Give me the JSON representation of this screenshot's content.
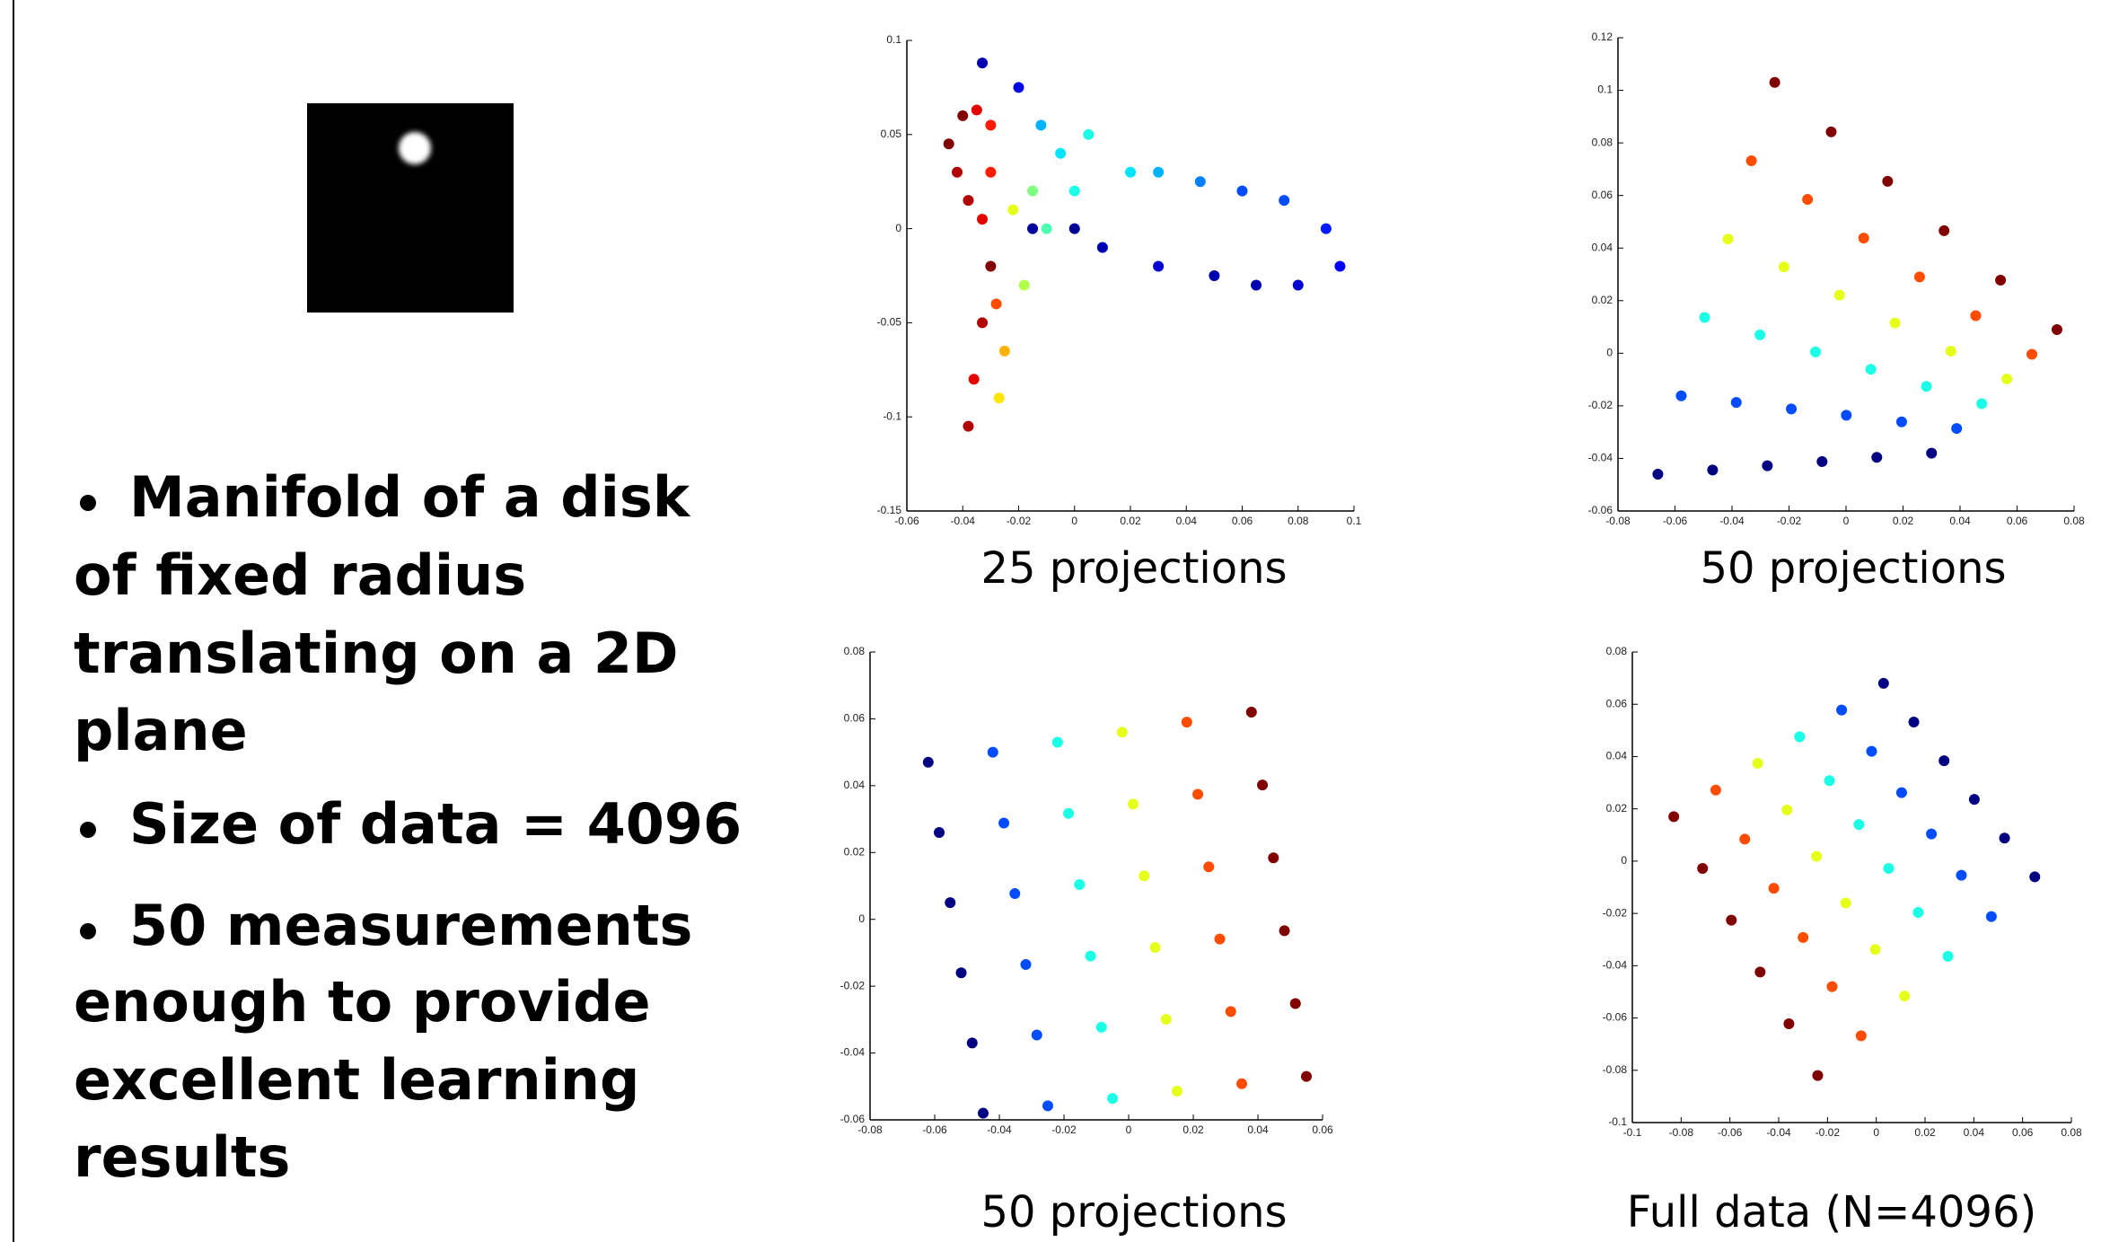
{
  "slide": {
    "bullets": [
      [
        "Manifold of a disk",
        "of fixed radius",
        "translating on a 2D",
        "plane"
      ],
      [
        "Size of data = 4096"
      ],
      [
        "50 measurements",
        "enough to provide",
        "excellent learning",
        "results"
      ]
    ]
  },
  "chart_data": [
    {
      "type": "scatter",
      "caption": "25 projections",
      "colormap": "jet",
      "xlim": [
        -0.06,
        0.1
      ],
      "ylim": [
        -0.15,
        0.1
      ],
      "xticks": [
        -0.06,
        -0.04,
        -0.02,
        0,
        0.02,
        0.04,
        0.06,
        0.08,
        0.1
      ],
      "yticks": [
        -0.15,
        -0.1,
        -0.05,
        0,
        0.05,
        0.1
      ],
      "x": [
        -0.04,
        -0.045,
        -0.042,
        -0.038,
        -0.033,
        -0.03,
        -0.03,
        -0.035,
        -0.03,
        -0.033,
        -0.036,
        -0.038,
        -0.028,
        -0.025,
        -0.027,
        -0.022,
        -0.015,
        -0.01,
        -0.018,
        -0.005,
        0.005,
        0.0,
        0.01,
        0.02,
        -0.012,
        0.03,
        0.045,
        0.06,
        0.075,
        0.09,
        0.095,
        0.08,
        0.065,
        0.05,
        0.03,
        0.01,
        0.0,
        -0.015,
        -0.033,
        -0.02
      ],
      "y": [
        0.06,
        0.045,
        0.03,
        0.015,
        0.005,
        0.03,
        0.055,
        0.063,
        -0.02,
        -0.05,
        -0.08,
        -0.105,
        -0.04,
        -0.065,
        -0.09,
        0.01,
        0.02,
        0.0,
        -0.03,
        0.04,
        0.05,
        0.02,
        -0.01,
        0.03,
        0.055,
        0.03,
        0.025,
        0.02,
        0.015,
        0.0,
        -0.02,
        -0.03,
        -0.03,
        -0.025,
        -0.02,
        -0.01,
        0.0,
        0.0,
        0.088,
        0.075
      ],
      "c": [
        1,
        1,
        0.95,
        0.95,
        0.9,
        0.85,
        0.85,
        0.9,
        1,
        0.95,
        0.9,
        0.95,
        0.8,
        0.7,
        0.65,
        0.6,
        0.5,
        0.45,
        0.55,
        0.35,
        0.4,
        0.4,
        0.35,
        0.35,
        0.3,
        0.3,
        0.25,
        0.2,
        0.2,
        0.15,
        0.12,
        0.08,
        0.05,
        0.05,
        0.08,
        0.05,
        0.02,
        0.03,
        0.05,
        0.1
      ]
    },
    {
      "type": "scatter",
      "caption": "50 projections",
      "colormap": "jet",
      "xlim": [
        -0.08,
        0.08
      ],
      "ylim": [
        -0.06,
        0.12
      ],
      "xticks": [
        -0.08,
        -0.06,
        -0.04,
        -0.02,
        0,
        0.02,
        0.04,
        0.06,
        0.08
      ],
      "yticks": [
        -0.06,
        -0.04,
        -0.02,
        0,
        0.02,
        0.04,
        0.06,
        0.08,
        0.1,
        0.12
      ],
      "x": [
        -0.025,
        -0.0332,
        -0.0414,
        -0.0496,
        -0.0578,
        -0.066,
        -0.0052,
        -0.0135,
        -0.0218,
        -0.0302,
        -0.0385,
        -0.0468,
        0.0146,
        0.0062,
        -0.0023,
        -0.0107,
        -0.0192,
        -0.0276,
        0.0344,
        0.0258,
        0.0172,
        0.0087,
        0.0001,
        -0.0084,
        0.0542,
        0.0455,
        0.0368,
        0.0282,
        0.0195,
        0.0108,
        0.074,
        0.0652,
        0.0564,
        0.0476,
        0.0388,
        0.03
      ],
      "y": [
        0.103,
        0.0732,
        0.0434,
        0.0136,
        -0.0162,
        -0.046,
        0.0842,
        0.0585,
        0.0328,
        0.007,
        -0.0187,
        -0.0444,
        0.0654,
        0.0438,
        0.0221,
        0.0005,
        -0.0212,
        -0.0428,
        0.0466,
        0.029,
        0.0115,
        -0.0061,
        -0.0236,
        -0.0412,
        0.0278,
        0.0143,
        0.0008,
        -0.0126,
        -0.0261,
        -0.0396,
        0.009,
        -0.0004,
        -0.0098,
        -0.0192,
        -0.0286,
        -0.038
      ],
      "c": [
        1,
        0.8,
        0.6,
        0.4,
        0.2,
        0,
        1,
        0.8,
        0.6,
        0.4,
        0.2,
        0,
        1,
        0.8,
        0.6,
        0.4,
        0.2,
        0,
        1,
        0.8,
        0.6,
        0.4,
        0.2,
        0,
        1,
        0.8,
        0.6,
        0.4,
        0.2,
        0,
        1,
        0.8,
        0.6,
        0.4,
        0.2,
        0
      ]
    },
    {
      "type": "scatter",
      "caption": "50 projections",
      "colormap": "jet",
      "xlim": [
        -0.08,
        0.06
      ],
      "ylim": [
        -0.06,
        0.08
      ],
      "xticks": [
        -0.08,
        -0.06,
        -0.04,
        -0.02,
        0,
        0.02,
        0.04,
        0.06
      ],
      "yticks": [
        -0.06,
        -0.04,
        -0.02,
        0,
        0.02,
        0.04,
        0.06,
        0.08
      ],
      "x": [
        -0.062,
        -0.042,
        -0.022,
        -0.002,
        0.018,
        0.038,
        -0.0586,
        -0.0386,
        -0.0186,
        0.0014,
        0.0214,
        0.0414,
        -0.0552,
        -0.0352,
        -0.0152,
        0.0048,
        0.0248,
        0.0448,
        -0.0518,
        -0.0318,
        -0.0118,
        0.0082,
        0.0282,
        0.0482,
        -0.0484,
        -0.0284,
        -0.0084,
        0.0116,
        0.0316,
        0.0516,
        -0.045,
        -0.025,
        -0.005,
        0.015,
        0.035,
        0.055
      ],
      "y": [
        0.047,
        0.05,
        0.053,
        0.056,
        0.059,
        0.062,
        0.026,
        0.0288,
        0.0317,
        0.0345,
        0.0374,
        0.0402,
        0.005,
        0.0077,
        0.0104,
        0.013,
        0.0157,
        0.0184,
        -0.016,
        -0.0135,
        -0.011,
        -0.0084,
        -0.0059,
        -0.0034,
        -0.037,
        -0.0346,
        -0.0323,
        -0.0299,
        -0.0276,
        -0.0252,
        -0.058,
        -0.0558,
        -0.0536,
        -0.0514,
        -0.0492,
        -0.047
      ],
      "c": [
        0,
        0.2,
        0.4,
        0.6,
        0.8,
        1,
        0,
        0.2,
        0.4,
        0.6,
        0.8,
        1,
        0,
        0.2,
        0.4,
        0.6,
        0.8,
        1,
        0,
        0.2,
        0.4,
        0.6,
        0.8,
        1,
        0,
        0.2,
        0.4,
        0.6,
        0.8,
        1,
        0,
        0.2,
        0.4,
        0.6,
        0.8,
        1
      ]
    },
    {
      "type": "scatter",
      "caption": "Full data (N=4096)",
      "colormap": "jet",
      "xlim": [
        -0.1,
        0.08
      ],
      "ylim": [
        -0.1,
        0.08
      ],
      "xticks": [
        -0.1,
        -0.08,
        -0.06,
        -0.04,
        -0.02,
        0,
        0.02,
        0.04,
        0.06,
        0.08
      ],
      "yticks": [
        -0.1,
        -0.08,
        -0.06,
        -0.04,
        -0.02,
        0,
        0.02,
        0.04,
        0.06,
        0.08
      ],
      "x": [
        -0.083,
        -0.0658,
        -0.0486,
        -0.0314,
        -0.0142,
        0.003,
        -0.0712,
        -0.0539,
        -0.0366,
        -0.0192,
        -0.0019,
        0.0154,
        -0.0594,
        -0.042,
        -0.0245,
        -0.0071,
        0.0104,
        0.0278,
        -0.0476,
        -0.03,
        -0.0125,
        0.0051,
        0.0226,
        0.0402,
        -0.0358,
        -0.0181,
        -0.0004,
        0.0172,
        0.0349,
        0.0526,
        -0.024,
        -0.0062,
        0.0116,
        0.0294,
        0.0472,
        0.065
      ],
      "y": [
        0.017,
        0.0272,
        0.0374,
        0.0476,
        0.0578,
        0.068,
        -0.0028,
        0.0084,
        0.0196,
        0.0308,
        0.042,
        0.0532,
        -0.0226,
        -0.0104,
        0.0018,
        0.014,
        0.0262,
        0.0384,
        -0.0424,
        -0.0292,
        -0.016,
        -0.0028,
        0.0104,
        0.0236,
        -0.0622,
        -0.048,
        -0.0338,
        -0.0196,
        -0.0054,
        0.0088,
        -0.082,
        -0.0668,
        -0.0516,
        -0.0364,
        -0.0212,
        -0.006
      ],
      "c": [
        1,
        0.8,
        0.6,
        0.4,
        0.2,
        0,
        1,
        0.8,
        0.6,
        0.4,
        0.2,
        0,
        1,
        0.8,
        0.6,
        0.4,
        0.2,
        0,
        1,
        0.8,
        0.6,
        0.4,
        0.2,
        0,
        1,
        0.8,
        0.6,
        0.4,
        0.2,
        0,
        1,
        0.8,
        0.6,
        0.4,
        0.2,
        0
      ]
    }
  ]
}
